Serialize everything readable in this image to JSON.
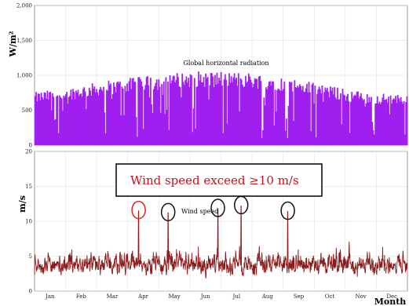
{
  "chart_data": [
    {
      "type": "area",
      "ylabel": "W/m²",
      "ylim": [
        0,
        2000
      ],
      "yticks": [
        0,
        500,
        1000,
        1500,
        2000
      ],
      "ytick_labels": [
        "0",
        "500",
        "1,000",
        "1,500",
        "2,000"
      ],
      "grid": true,
      "color": "#a020f0",
      "annotation": "Global horizontal radiation",
      "x": [
        "Jan",
        "Feb",
        "Mar",
        "Apr",
        "May",
        "Jun",
        "Jul",
        "Aug",
        "Sep",
        "Oct",
        "Nov",
        "Dec"
      ],
      "peak_daily_max": [
        760,
        820,
        900,
        960,
        1010,
        1060,
        1060,
        1040,
        980,
        900,
        800,
        740
      ]
    },
    {
      "type": "line",
      "ylabel": "m/s",
      "xlabel": "Month",
      "ylim": [
        0,
        20
      ],
      "yticks": [
        0,
        5,
        10,
        15,
        20
      ],
      "ytick_labels": [
        "0",
        "5",
        "10",
        "15",
        "20"
      ],
      "grid": true,
      "color": "#8b1a1a",
      "annotation": "Wind speed",
      "callout": "Wind speed exceed ≥10 m/s",
      "categories": [
        "Jan",
        "Feb",
        "Mar",
        "Apr",
        "May",
        "Jun",
        "Jul",
        "Aug",
        "Sep",
        "Oct",
        "Nov",
        "Dec"
      ],
      "highlight_peaks": [
        {
          "month": 3.35,
          "value": 11.5,
          "circle_color": "#e0202a"
        },
        {
          "month": 4.3,
          "value": 11.2,
          "circle_color": "#111111"
        },
        {
          "month": 5.9,
          "value": 11.8,
          "circle_color": "#111111"
        },
        {
          "month": 6.65,
          "value": 12.2,
          "circle_color": "#111111"
        },
        {
          "month": 8.15,
          "value": 11.4,
          "circle_color": "#111111"
        }
      ]
    }
  ]
}
